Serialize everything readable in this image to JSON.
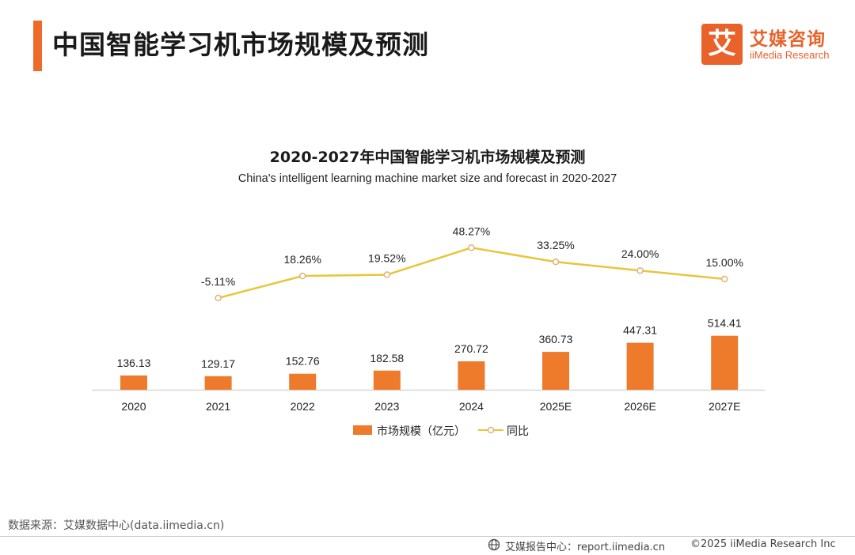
{
  "header": {
    "title": "中国智能学习机市场规模及预测",
    "brand_icon_char": "艾",
    "brand_cn": "艾媒咨询",
    "brand_en": "iiMedia Research",
    "accent_color": "#ee6a2b"
  },
  "chart_data": {
    "type": "bar",
    "title": "2020-2027年中国智能学习机市场规模及预测",
    "subtitle": "China's intelligent learning machine market size and forecast in 2020-2027",
    "categories": [
      "2020",
      "2021",
      "2022",
      "2023",
      "2024",
      "2025E",
      "2026E",
      "2027E"
    ],
    "series": [
      {
        "name": "市场规模（亿元）",
        "type": "bar",
        "color": "#ee7a2b",
        "values": [
          136.13,
          129.17,
          152.76,
          182.58,
          270.72,
          360.73,
          447.31,
          514.41
        ],
        "labels": [
          "136.13",
          "129.17",
          "152.76",
          "182.58",
          "270.72",
          "360.73",
          "447.31",
          "514.41"
        ]
      },
      {
        "name": "同比",
        "type": "line",
        "color": "#e8c53a",
        "values": [
          null,
          -5.11,
          18.26,
          19.52,
          48.27,
          33.25,
          24.0,
          15.0
        ],
        "labels": [
          "",
          "-5.11%",
          "18.26%",
          "19.52%",
          "48.27%",
          "33.25%",
          "24.00%",
          "15.00%"
        ]
      }
    ],
    "legend_position": "bottom-center",
    "grid": false
  },
  "footer": {
    "source": "数据来源：艾媒数据中心(data.iimedia.cn)",
    "report_center": "艾媒报告中心：report.iimedia.cn",
    "copyright": "©2025  iiMedia Research  Inc"
  }
}
